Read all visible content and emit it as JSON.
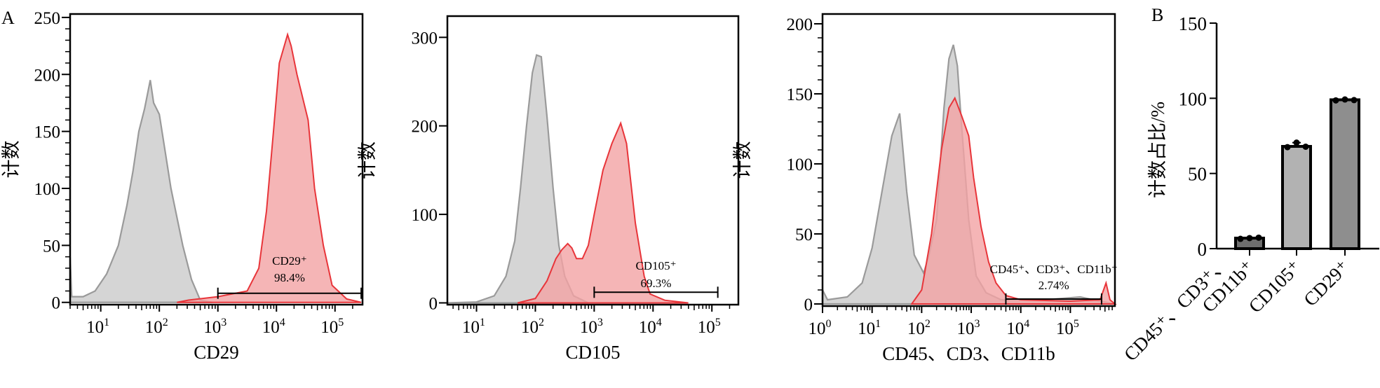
{
  "panel_letters": {
    "a": "A",
    "b": "B"
  },
  "colors": {
    "sample_fill": "#f2a2a4",
    "sample_line": "#e8353a",
    "control_fill": "#d3d3d3",
    "control_line": "#9a9a9a",
    "bar_fills": [
      "#6e6e6e",
      "#b2b2b2",
      "#8e8e8e"
    ]
  },
  "chart_data": [
    {
      "type": "area",
      "xscale": "log",
      "xlabel": "CD29",
      "ylabel": "计数",
      "xlim": [
        3,
        295000
      ],
      "ylim": [
        -2,
        253
      ],
      "xticks": [
        "10^1",
        "10^2",
        "10^3",
        "10^4",
        "10^5"
      ],
      "yticks": [
        0,
        50,
        100,
        150,
        200,
        250
      ],
      "yminor": 10,
      "gate": {
        "label": "CD29⁺",
        "percent": "98.4%",
        "from": 1000,
        "to": 280000,
        "count": 8
      },
      "control": [
        [
          3,
          40
        ],
        [
          3.2,
          5
        ],
        [
          5,
          5
        ],
        [
          8,
          10
        ],
        [
          12.6,
          25
        ],
        [
          20,
          50
        ],
        [
          28,
          85
        ],
        [
          35.5,
          115
        ],
        [
          44.7,
          150
        ],
        [
          56,
          170
        ],
        [
          70,
          195
        ],
        [
          80,
          175
        ],
        [
          100,
          165
        ],
        [
          158,
          100
        ],
        [
          251,
          50
        ],
        [
          355,
          20
        ],
        [
          500,
          2
        ],
        [
          800,
          0
        ]
      ],
      "sample": [
        [
          200,
          0
        ],
        [
          316,
          2
        ],
        [
          1000,
          5
        ],
        [
          3160,
          10
        ],
        [
          5000,
          30
        ],
        [
          6760,
          80
        ],
        [
          8900,
          150
        ],
        [
          11200,
          210
        ],
        [
          15500,
          235
        ],
        [
          17800,
          225
        ],
        [
          22400,
          200
        ],
        [
          34700,
          160
        ],
        [
          44700,
          100
        ],
        [
          63100,
          50
        ],
        [
          89100,
          15
        ],
        [
          158000,
          3
        ],
        [
          280000,
          0
        ]
      ]
    },
    {
      "type": "area",
      "xscale": "log",
      "xlabel": "CD105",
      "ylabel": "计数",
      "xlim": [
        3.2,
        282000
      ],
      "ylim": [
        -2,
        324
      ],
      "xticks": [
        "10^1",
        "10^2",
        "10^3",
        "10^4",
        "10^5"
      ],
      "yticks": [
        0,
        100,
        200,
        300
      ],
      "yminor": null,
      "gate": {
        "label": "CD105⁺",
        "percent": "69.3%",
        "from": 1000,
        "to": 126000,
        "count": 12
      },
      "control": [
        [
          3.2,
          0
        ],
        [
          10,
          1
        ],
        [
          20,
          8
        ],
        [
          31.6,
          30
        ],
        [
          44.7,
          70
        ],
        [
          56,
          130
        ],
        [
          70.8,
          200
        ],
        [
          89,
          260
        ],
        [
          105,
          280
        ],
        [
          126,
          278
        ],
        [
          158,
          210
        ],
        [
          200,
          130
        ],
        [
          251,
          65
        ],
        [
          316,
          30
        ],
        [
          447,
          8
        ],
        [
          794,
          0
        ]
      ],
      "sample": [
        [
          50,
          0
        ],
        [
          100,
          5
        ],
        [
          158,
          25
        ],
        [
          224,
          50
        ],
        [
          282,
          60
        ],
        [
          355,
          67
        ],
        [
          417,
          62
        ],
        [
          500,
          50
        ],
        [
          631,
          50
        ],
        [
          794,
          65
        ],
        [
          1000,
          100
        ],
        [
          1410,
          150
        ],
        [
          2000,
          180
        ],
        [
          2820,
          203
        ],
        [
          3550,
          180
        ],
        [
          5010,
          90
        ],
        [
          7080,
          30
        ],
        [
          8910,
          10
        ],
        [
          15800,
          3
        ],
        [
          39800,
          0
        ]
      ]
    },
    {
      "type": "area",
      "xscale": "log",
      "xlabel": "CD45、CD3、CD11b",
      "ylabel": "计数",
      "xlim": [
        1,
        794000
      ],
      "ylim": [
        -1.5,
        207
      ],
      "xticks": [
        "10^0",
        "10^1",
        "10^2",
        "10^3",
        "10^4",
        "10^5"
      ],
      "yticks": [
        0,
        50,
        100,
        150,
        200
      ],
      "yminor": 10,
      "gate": {
        "label": "CD45⁺、CD3⁺、CD11b⁺",
        "percent": "2.74%",
        "from": 5000,
        "to": 427000,
        "count": 3.5
      },
      "control": [
        [
          1,
          10
        ],
        [
          1.26,
          3
        ],
        [
          3.16,
          5
        ],
        [
          6.3,
          15
        ],
        [
          10,
          40
        ],
        [
          15.8,
          80
        ],
        [
          25,
          120
        ],
        [
          36,
          136
        ],
        [
          50,
          80
        ],
        [
          71,
          35
        ],
        [
          110,
          22
        ],
        [
          141,
          35
        ],
        [
          200,
          60
        ],
        [
          282,
          140
        ],
        [
          355,
          175
        ],
        [
          437,
          185
        ],
        [
          525,
          170
        ],
        [
          631,
          130
        ],
        [
          891,
          60
        ],
        [
          1260,
          20
        ],
        [
          2000,
          8
        ],
        [
          3980,
          3
        ],
        [
          31600,
          3
        ],
        [
          158000,
          5
        ],
        [
          398000,
          2
        ],
        [
          794000,
          0
        ]
      ],
      "sample": [
        [
          63,
          0
        ],
        [
          100,
          10
        ],
        [
          158,
          50
        ],
        [
          251,
          110
        ],
        [
          355,
          140
        ],
        [
          468,
          147
        ],
        [
          631,
          135
        ],
        [
          891,
          120
        ],
        [
          1120,
          90
        ],
        [
          1580,
          55
        ],
        [
          2240,
          30
        ],
        [
          3160,
          15
        ],
        [
          5010,
          6
        ],
        [
          10000,
          3
        ],
        [
          100000,
          2
        ],
        [
          398000,
          3
        ],
        [
          525000,
          15
        ],
        [
          631000,
          3
        ],
        [
          794000,
          0
        ]
      ]
    },
    {
      "type": "bar",
      "ylabel": "计数占比/%",
      "categories": [
        "CD45⁺、CD3⁺、CD11b⁺",
        "CD105⁺",
        "CD29⁺"
      ],
      "values": [
        7,
        68,
        99
      ],
      "points": [
        [
          6.5,
          7,
          7.3
        ],
        [
          67.5,
          70.5,
          67.8
        ],
        [
          98.6,
          99.2,
          98.8
        ]
      ],
      "ylim": [
        0,
        150
      ],
      "yticks": [
        0,
        50,
        100,
        150
      ]
    }
  ]
}
